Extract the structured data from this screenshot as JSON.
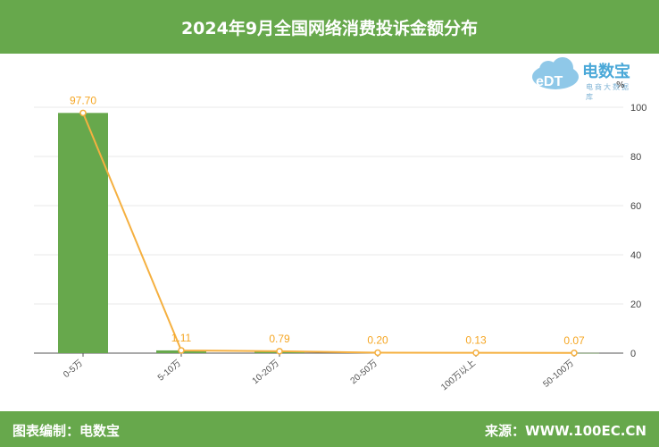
{
  "header": {
    "title": "2024年9月全国网络消费投诉金额分布"
  },
  "footer": {
    "left": "图表编制：电数宝",
    "right": "来源：WWW.100EC.CN"
  },
  "logo": {
    "brand": "电数宝",
    "sub": "电商大数据库"
  },
  "colors": {
    "bar": "#67a84c",
    "line": "#f5b040",
    "label": "#f5a623"
  },
  "chart_data": {
    "type": "bar",
    "title": "2024年9月全国网络消费投诉金额分布",
    "categories": [
      "0-5万",
      "5-10万",
      "10-20万",
      "20-50万",
      "100万以上",
      "50-100万"
    ],
    "values": [
      97.7,
      1.11,
      0.79,
      0.2,
      0.13,
      0.07
    ],
    "value_labels": [
      "97.70",
      "1.11",
      "0.79",
      "0.20",
      "0.13",
      "0.07"
    ],
    "overlay_line": true,
    "yunit": "%",
    "ylim": [
      0,
      100
    ],
    "yticks": [
      0,
      20,
      40,
      60,
      80,
      100
    ],
    "grid": true,
    "yaxis_position": "right"
  }
}
